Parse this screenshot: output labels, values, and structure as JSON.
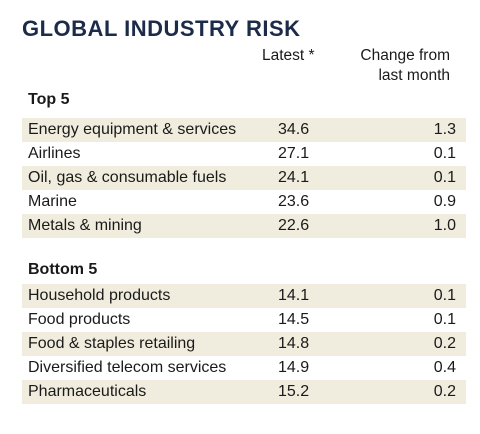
{
  "title": "GLOBAL INDUSTRY RISK",
  "columns": {
    "latest": "Latest *",
    "change_line1": "Change from",
    "change_line2": "last month"
  },
  "chart_data": {
    "type": "table",
    "title": "GLOBAL INDUSTRY RISK",
    "columns": [
      "Latest *",
      "Change from last month"
    ],
    "groups": [
      {
        "label": "Top 5",
        "rows": [
          {
            "name": "Energy equipment & services",
            "latest": "34.6",
            "change": "1.3"
          },
          {
            "name": "Airlines",
            "latest": "27.1",
            "change": "0.1"
          },
          {
            "name": "Oil, gas & consumable fuels",
            "latest": "24.1",
            "change": "0.1"
          },
          {
            "name": "Marine",
            "latest": "23.6",
            "change": "0.9"
          },
          {
            "name": "Metals & mining",
            "latest": "22.6",
            "change": "1.0"
          }
        ]
      },
      {
        "label": "Bottom 5",
        "rows": [
          {
            "name": "Household products",
            "latest": "14.1",
            "change": "0.1"
          },
          {
            "name": "Food products",
            "latest": "14.5",
            "change": "0.1"
          },
          {
            "name": "Food & staples retailing",
            "latest": "14.8",
            "change": "0.2"
          },
          {
            "name": "Diversified telecom services",
            "latest": "14.9",
            "change": "0.4"
          },
          {
            "name": "Pharmaceuticals",
            "latest": "15.2",
            "change": "0.2"
          }
        ]
      }
    ]
  },
  "colors": {
    "title": "#1c2b4a",
    "row_shade": "#f1edde"
  }
}
